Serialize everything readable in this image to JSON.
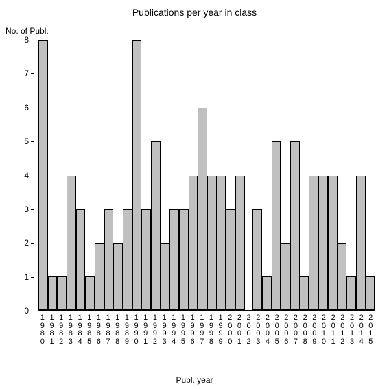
{
  "chart": {
    "type": "bar",
    "title": "Publications per year in class",
    "title_fontsize": 14,
    "y_axis_label": "No. of Publ.",
    "x_axis_label": "Publ. year",
    "label_fontsize": 12,
    "background_color": "#ffffff",
    "bar_color": "#c0c0c0",
    "bar_border_color": "#000000",
    "axis_color": "#000000",
    "ylim": [
      0,
      8
    ],
    "ytick_step": 1,
    "yticks": [
      0,
      1,
      2,
      3,
      4,
      5,
      6,
      7,
      8
    ],
    "categories": [
      "1980",
      "1981",
      "1982",
      "1983",
      "1984",
      "1985",
      "1986",
      "1987",
      "1988",
      "1989",
      "1990",
      "1991",
      "1992",
      "1993",
      "1994",
      "1995",
      "1996",
      "1997",
      "1998",
      "1999",
      "2000",
      "2001",
      "2002",
      "2003",
      "2004",
      "2005",
      "2006",
      "2007",
      "2008",
      "2009",
      "2010",
      "2011",
      "2012",
      "2013",
      "2014",
      "2015"
    ],
    "values": [
      8,
      1,
      1,
      4,
      3,
      1,
      2,
      3,
      2,
      3,
      8,
      3,
      5,
      2,
      3,
      3,
      4,
      6,
      4,
      4,
      3,
      4,
      0,
      3,
      1,
      5,
      2,
      5,
      1,
      4,
      4,
      4,
      2,
      1,
      4,
      1
    ]
  }
}
